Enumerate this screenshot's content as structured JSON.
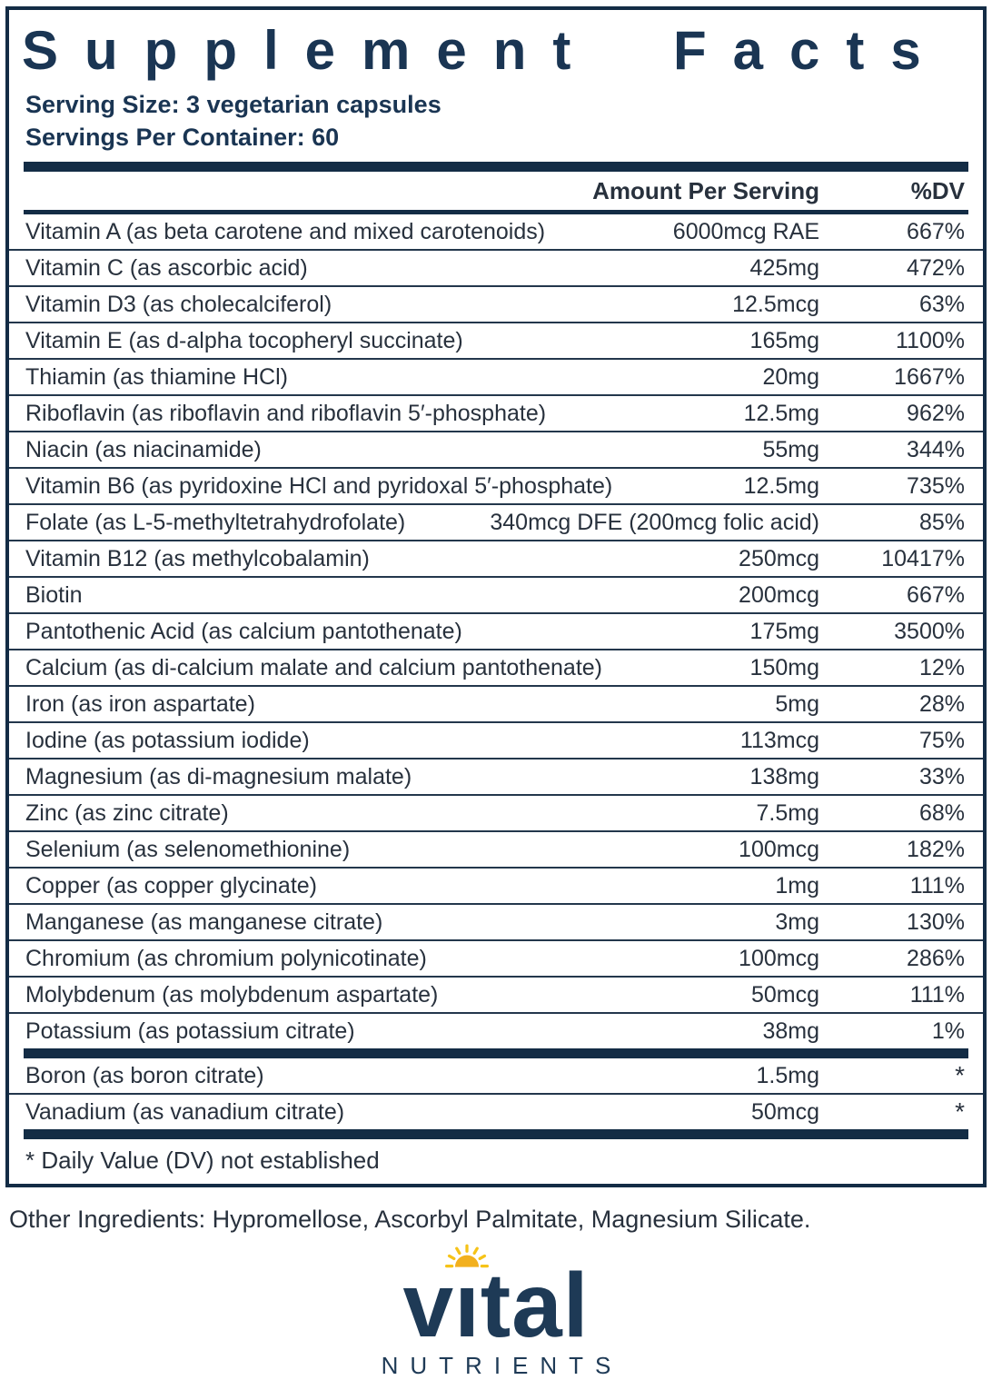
{
  "panel": {
    "title": "Supplement Facts",
    "serving_size": "Serving Size: 3 vegetarian capsules",
    "servings_per_container": "Servings Per Container: 60",
    "columns": {
      "amount": "Amount Per Serving",
      "dv": "%DV"
    },
    "rows": [
      {
        "name": "Vitamin A (as beta carotene and mixed carotenoids)",
        "amount": "6000mcg RAE",
        "dv": "667%"
      },
      {
        "name": "Vitamin C (as ascorbic acid)",
        "amount": "425mg",
        "dv": "472%"
      },
      {
        "name": "Vitamin D3 (as cholecalciferol)",
        "amount": "12.5mcg",
        "dv": "63%"
      },
      {
        "name": "Vitamin E (as d-alpha tocopheryl succinate)",
        "amount": "165mg",
        "dv": "1100%"
      },
      {
        "name": "Thiamin (as thiamine HCl)",
        "amount": "20mg",
        "dv": "1667%"
      },
      {
        "name": "Riboflavin (as riboflavin and riboflavin 5′-phosphate)",
        "amount": "12.5mg",
        "dv": "962%"
      },
      {
        "name": "Niacin (as niacinamide)",
        "amount": "55mg",
        "dv": "344%"
      },
      {
        "name": "Vitamin B6 (as pyridoxine HCl and pyridoxal 5′-phosphate)",
        "amount": "12.5mg",
        "dv": "735%"
      },
      {
        "name": "Folate (as L-5-methyltetrahydrofolate)",
        "amount": "340mcg DFE (200mcg folic acid)",
        "dv": "85%"
      },
      {
        "name": "Vitamin B12 (as methylcobalamin)",
        "amount": "250mcg",
        "dv": "10417%"
      },
      {
        "name": "Biotin",
        "amount": "200mcg",
        "dv": "667%"
      },
      {
        "name": "Pantothenic Acid (as calcium pantothenate)",
        "amount": "175mg",
        "dv": "3500%"
      },
      {
        "name": "Calcium (as di-calcium malate and calcium pantothenate)",
        "amount": "150mg",
        "dv": "12%"
      },
      {
        "name": "Iron (as iron aspartate)",
        "amount": "5mg",
        "dv": "28%"
      },
      {
        "name": "Iodine (as potassium iodide)",
        "amount": "113mcg",
        "dv": "75%"
      },
      {
        "name": "Magnesium (as di-magnesium malate)",
        "amount": "138mg",
        "dv": "33%"
      },
      {
        "name": "Zinc (as zinc citrate)",
        "amount": "7.5mg",
        "dv": "68%"
      },
      {
        "name": "Selenium (as selenomethionine)",
        "amount": "100mcg",
        "dv": "182%"
      },
      {
        "name": "Copper (as copper glycinate)",
        "amount": "1mg",
        "dv": "111%"
      },
      {
        "name": "Manganese (as manganese citrate)",
        "amount": "3mg",
        "dv": "130%"
      },
      {
        "name": "Chromium (as chromium polynicotinate)",
        "amount": "100mcg",
        "dv": "286%"
      },
      {
        "name": "Molybdenum (as molybdenum aspartate)",
        "amount": "50mcg",
        "dv": "111%"
      },
      {
        "name": "Potassium (as potassium citrate)",
        "amount": "38mg",
        "dv": "1%"
      }
    ],
    "no_dv_rows": [
      {
        "name": "Boron (as boron citrate)",
        "amount": "1.5mg",
        "dv": "*"
      },
      {
        "name": "Vanadium (as vanadium citrate)",
        "amount": "50mcg",
        "dv": "*"
      }
    ],
    "footnote": "* Daily Value (DV) not established"
  },
  "other_ingredients": "Other Ingredients: Hypromellose, Ascorbyl Palmitate, Magnesium Silicate.",
  "logo": {
    "word_prefix": "v",
    "word_dotless_i": "ı",
    "word_suffix": "tal",
    "subtext": "NUTRIENTS",
    "sun_icon": "sun-icon"
  },
  "colors": {
    "navy": "#132c45",
    "title-navy": "#1a3553",
    "text": "#28313d",
    "rule": "#23374c",
    "sun-gold": "#f2b01e",
    "sun-ray": "#f6c318",
    "logo-navy": "#1e3a56"
  }
}
